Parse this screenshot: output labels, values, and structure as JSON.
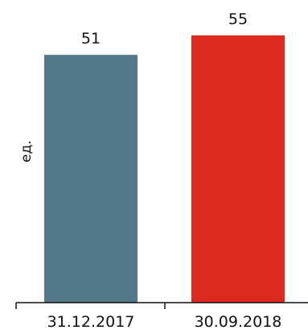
{
  "chart_data": {
    "type": "bar",
    "title": "",
    "xlabel": "",
    "ylabel": "ед.",
    "categories": [
      "31.12.2017",
      "30.09.2018"
    ],
    "values": [
      51,
      55
    ],
    "colors": [
      "#52788a",
      "#dc2b1e"
    ],
    "ylim": [
      0,
      55
    ],
    "grid": false,
    "legend": "none",
    "data_labels": true
  }
}
